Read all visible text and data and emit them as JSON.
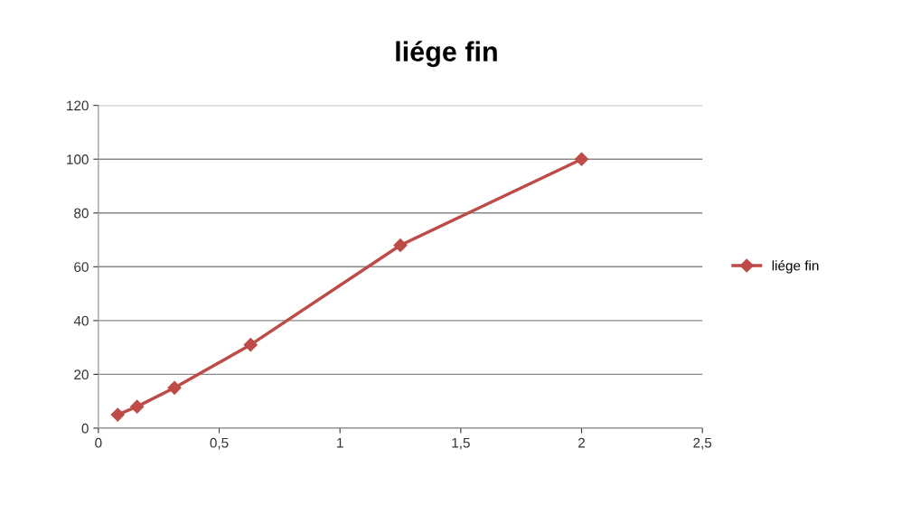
{
  "chart_data": {
    "type": "line",
    "title": "liége fin",
    "x": [
      0.08,
      0.16,
      0.315,
      0.63,
      1.25,
      2
    ],
    "series": [
      {
        "name": "liége fin",
        "color": "#be4b48",
        "values": [
          5,
          8,
          15,
          31,
          68,
          100
        ]
      }
    ],
    "xlim": [
      0,
      2.5
    ],
    "xticks": [
      0,
      {
        "value": 0.5,
        "label": "0,5"
      },
      1,
      {
        "value": 1.5,
        "label": "1,5"
      },
      2,
      {
        "value": 2.5,
        "label": "2,5"
      }
    ],
    "ylim": [
      0,
      120
    ],
    "yticks": [
      0,
      20,
      40,
      60,
      80,
      100,
      120
    ],
    "grid": "y",
    "legend": "right",
    "marker": "diamond",
    "line_style": "solid"
  }
}
